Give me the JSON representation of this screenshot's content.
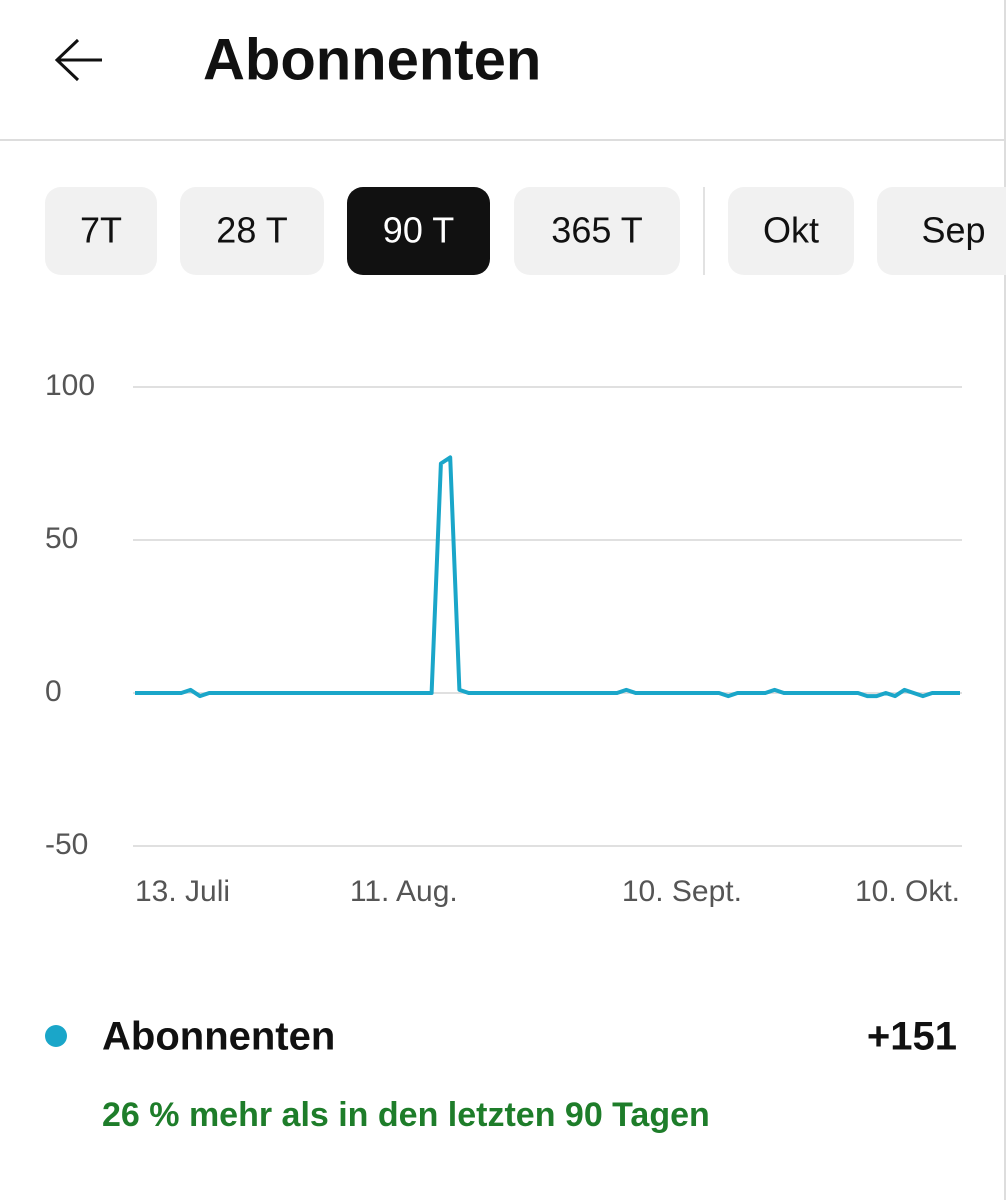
{
  "header": {
    "title": "Abonnenten"
  },
  "tabs": {
    "items": [
      "7T",
      "28 T",
      "90 T",
      "365 T",
      "Okt",
      "Sep"
    ],
    "selected": 2
  },
  "chart_data": {
    "type": "line",
    "categories": [
      "13. Juli",
      null,
      null,
      null,
      null,
      null,
      null,
      null,
      null,
      null,
      null,
      null,
      null,
      null,
      null,
      null,
      null,
      null,
      null,
      null,
      null,
      null,
      null,
      null,
      null,
      null,
      null,
      null,
      null,
      "11. Aug.",
      null,
      null,
      null,
      null,
      null,
      null,
      null,
      null,
      null,
      null,
      null,
      null,
      null,
      null,
      null,
      null,
      null,
      null,
      null,
      null,
      null,
      null,
      null,
      null,
      null,
      null,
      null,
      null,
      null,
      "10. Sept.",
      null,
      null,
      null,
      null,
      null,
      null,
      null,
      null,
      null,
      null,
      null,
      null,
      null,
      null,
      null,
      null,
      null,
      null,
      null,
      null,
      null,
      null,
      null,
      null,
      null,
      null,
      null,
      null,
      null,
      "10. Okt."
    ],
    "series": [
      {
        "name": "Abonnenten",
        "color": "#1aa6c9",
        "values": [
          0,
          0,
          0,
          0,
          0,
          0,
          1,
          -1,
          0,
          0,
          0,
          0,
          0,
          0,
          0,
          0,
          0,
          0,
          0,
          0,
          0,
          0,
          0,
          0,
          0,
          0,
          0,
          0,
          0,
          0,
          0,
          0,
          0,
          75,
          77,
          1,
          0,
          0,
          0,
          0,
          0,
          0,
          0,
          0,
          0,
          0,
          0,
          0,
          0,
          0,
          0,
          0,
          0,
          1,
          0,
          0,
          0,
          0,
          0,
          0,
          0,
          0,
          0,
          0,
          -1,
          0,
          0,
          0,
          0,
          1,
          0,
          0,
          0,
          0,
          0,
          0,
          0,
          0,
          0,
          -1,
          -1,
          0,
          -1,
          1,
          0,
          -1,
          0,
          0,
          0,
          0
        ]
      }
    ],
    "ylim": [
      -50,
      100
    ],
    "yticks": [
      -50,
      0,
      50,
      100
    ],
    "grid": true
  },
  "summary": {
    "total": "+151",
    "note": "26 % mehr als in den letzten 90 Tagen"
  }
}
